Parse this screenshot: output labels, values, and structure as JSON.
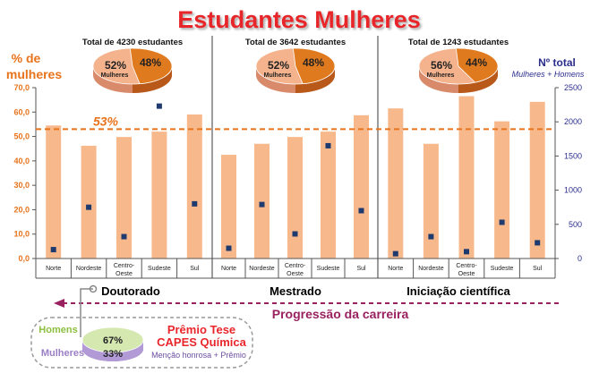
{
  "title": "Estudantes Mulheres",
  "left_axis": {
    "label_line1": "% de",
    "label_line2": "mulheres",
    "ticks": [
      "0,0",
      "10,0",
      "20,0",
      "30,0",
      "40,0",
      "50,0",
      "60,0",
      "70,0"
    ],
    "min": 0,
    "max": 70
  },
  "right_axis": {
    "label_line1": "Nº total",
    "label_line2": "Mulheres + Homens",
    "ticks": [
      "0",
      "500",
      "1000",
      "1500",
      "2000",
      "2500"
    ],
    "min": 0,
    "max": 2500
  },
  "reference": {
    "value": 53,
    "label": "53%"
  },
  "colors": {
    "bar": "#f7b98b",
    "dot": "#1f3a6e",
    "title": "#e8262b",
    "orange": "#e8731b",
    "navy": "#2b2e8c",
    "purple": "#9a2160",
    "pie_orange": "#e07a1f",
    "pie_light": "#f4b38d"
  },
  "chart_data": {
    "type": "bar",
    "regions": [
      "Norte",
      "Nordeste",
      "Centro-\nOeste",
      "Sudeste",
      "Sul"
    ],
    "groups": [
      {
        "name": "Doutorado",
        "total_label": "Total de 4230 estudantes",
        "pie_women": "52%",
        "pie_women_label": "Mulheres",
        "pie_men": "48%",
        "percent_women": [
          54.5,
          46.2,
          49.8,
          52.0,
          59.0
        ],
        "total_students": [
          130,
          750,
          320,
          2230,
          800
        ]
      },
      {
        "name": "Mestrado",
        "total_label": "Total de 3642 estudantes",
        "pie_women": "52%",
        "pie_women_label": "Mulheres",
        "pie_men": "48%",
        "percent_women": [
          42.5,
          47.0,
          49.8,
          52.0,
          58.7
        ],
        "total_students": [
          150,
          790,
          360,
          1650,
          700
        ]
      },
      {
        "name": "Iniciação científica",
        "total_label": "Total de 1243 estudantes",
        "pie_women": "56%",
        "pie_women_label": "Mulheres",
        "pie_men": "44%",
        "percent_women": [
          61.5,
          47.0,
          66.5,
          56.2,
          64.2
        ],
        "total_students": [
          70,
          320,
          100,
          530,
          230
        ]
      }
    ]
  },
  "career_arrow": "Progressão da carreira",
  "award": {
    "men_label": "Homens",
    "men_pct": "67%",
    "women_label": "Mulheres",
    "women_pct": "33%",
    "title_line1": "Prêmio Tese",
    "title_line2": "CAPES Química",
    "subtitle": "Menção honrosa + Prêmio"
  }
}
